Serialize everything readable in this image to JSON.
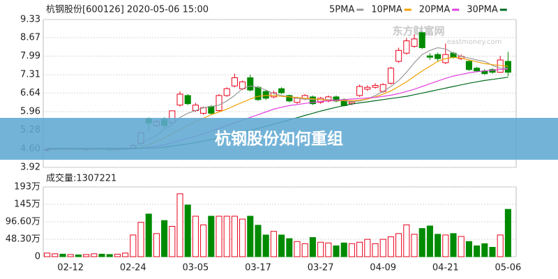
{
  "chart_data": [
    {
      "type": "candlestick",
      "title": "杭钢股份[600126] 2020-05-06 15:00",
      "ylim": [
        3.92,
        9.33
      ],
      "yticks": [
        {
          "value": 3.92,
          "label": "3.92"
        },
        {
          "value": 4.6,
          "label": "4.60"
        },
        5.28,
        5.96,
        6.64,
        7.31,
        7.99,
        8.67,
        9.33
      ],
      "grid": true,
      "up_color": "#e8001a",
      "down_color": "#008a00",
      "legend": "top-right",
      "open": [
        4.55,
        4.57,
        4.6,
        4.58,
        4.6,
        4.57,
        4.58,
        4.6,
        4.58,
        4.57,
        4.59,
        4.62,
        4.8,
        5.7,
        5.45,
        5.68,
        5.55,
        6.2,
        6.55,
        6.0,
        5.9,
        6.15,
        6.0,
        6.55,
        6.9,
        6.8,
        7.2,
        6.85,
        6.7,
        6.5,
        6.8,
        6.55,
        6.3,
        6.42,
        6.5,
        6.3,
        6.35,
        6.5,
        6.4,
        6.25,
        6.55,
        6.78,
        6.85,
        6.7,
        7.0,
        7.8,
        8.1,
        8.35,
        8.85,
        8.0,
        8.05,
        7.75,
        8.1,
        7.9,
        7.8,
        7.55,
        7.45,
        7.5,
        7.4,
        7.8
      ],
      "close": [
        4.57,
        4.6,
        4.58,
        4.6,
        4.57,
        4.58,
        4.6,
        4.58,
        4.57,
        4.59,
        4.62,
        4.72,
        5.19,
        5.55,
        5.6,
        5.45,
        5.99,
        6.6,
        6.25,
        6.2,
        6.1,
        5.9,
        6.55,
        6.8,
        7.2,
        7.05,
        6.75,
        6.4,
        6.45,
        6.65,
        6.65,
        6.35,
        6.45,
        6.55,
        6.25,
        6.45,
        6.5,
        6.35,
        6.18,
        6.3,
        6.88,
        6.85,
        6.92,
        6.95,
        7.55,
        8.2,
        8.55,
        8.62,
        8.3,
        7.95,
        7.9,
        8.05,
        7.95,
        7.98,
        7.5,
        7.45,
        7.35,
        7.4,
        7.85,
        7.4
      ],
      "high": [
        4.62,
        4.63,
        4.64,
        4.63,
        4.62,
        4.61,
        4.63,
        4.62,
        4.61,
        4.62,
        4.66,
        4.8,
        5.19,
        5.75,
        5.65,
        5.75,
        5.99,
        6.7,
        6.6,
        6.28,
        6.15,
        6.2,
        6.6,
        6.85,
        7.35,
        7.1,
        7.32,
        6.9,
        6.75,
        6.72,
        6.85,
        6.58,
        6.5,
        6.6,
        6.55,
        6.5,
        6.55,
        6.55,
        6.45,
        6.35,
        6.95,
        6.92,
        7.0,
        7.0,
        7.6,
        8.3,
        8.65,
        8.78,
        8.9,
        8.1,
        8.12,
        8.45,
        8.15,
        8.05,
        7.85,
        7.6,
        7.52,
        7.55,
        8.0,
        8.15
      ],
      "low": [
        4.5,
        4.52,
        4.55,
        4.55,
        4.54,
        4.54,
        4.55,
        4.55,
        4.54,
        4.55,
        4.56,
        4.58,
        4.72,
        5.25,
        5.4,
        5.35,
        5.5,
        6.15,
        6.2,
        5.95,
        5.85,
        5.85,
        5.95,
        6.5,
        6.85,
        6.75,
        6.7,
        6.35,
        6.38,
        6.45,
        6.6,
        6.3,
        6.25,
        6.38,
        6.2,
        6.25,
        6.3,
        6.3,
        6.15,
        6.2,
        6.5,
        6.72,
        6.8,
        6.65,
        6.95,
        7.75,
        8.05,
        8.3,
        8.25,
        7.85,
        7.8,
        7.7,
        7.9,
        7.85,
        7.45,
        7.4,
        7.3,
        7.35,
        7.38,
        7.25
      ],
      "series": [
        {
          "name": "5PMA",
          "color": "#9a9a9a",
          "values": [
            4.58,
            4.58,
            4.58,
            4.58,
            4.58,
            4.58,
            4.58,
            4.58,
            4.58,
            4.58,
            4.58,
            4.64,
            4.8,
            4.95,
            5.1,
            5.3,
            5.5,
            5.75,
            5.9,
            6.0,
            6.1,
            6.15,
            6.2,
            6.35,
            6.55,
            6.8,
            6.9,
            6.85,
            6.75,
            6.62,
            6.55,
            6.5,
            6.45,
            6.42,
            6.4,
            6.4,
            6.4,
            6.38,
            6.36,
            6.32,
            6.35,
            6.42,
            6.55,
            6.7,
            6.88,
            7.1,
            7.4,
            7.75,
            8.05,
            8.2,
            8.3,
            8.25,
            8.1,
            7.98,
            7.92,
            7.85,
            7.8,
            7.65,
            7.55,
            7.55
          ]
        },
        {
          "name": "10PMA",
          "color": "#f0a000",
          "values": [
            4.58,
            4.58,
            4.58,
            4.58,
            4.58,
            4.58,
            4.58,
            4.58,
            4.58,
            4.58,
            4.59,
            4.6,
            4.65,
            4.75,
            4.87,
            5.0,
            5.15,
            5.3,
            5.45,
            5.6,
            5.72,
            5.85,
            5.95,
            6.05,
            6.18,
            6.3,
            6.42,
            6.52,
            6.55,
            6.55,
            6.52,
            6.5,
            6.48,
            6.45,
            6.43,
            6.4,
            6.38,
            6.37,
            6.37,
            6.36,
            6.38,
            6.42,
            6.5,
            6.6,
            6.72,
            6.88,
            7.05,
            7.25,
            7.45,
            7.62,
            7.8,
            7.9,
            7.95,
            7.92,
            7.85,
            7.78,
            7.72,
            7.68,
            7.65,
            7.62
          ]
        },
        {
          "name": "20PMA",
          "color": "#e040e0",
          "values": [
            4.6,
            4.6,
            4.6,
            4.6,
            4.6,
            4.6,
            4.6,
            4.6,
            4.6,
            4.6,
            4.6,
            4.6,
            4.62,
            4.66,
            4.7,
            4.75,
            4.82,
            4.9,
            4.98,
            5.06,
            5.15,
            5.25,
            5.35,
            5.45,
            5.55,
            5.65,
            5.75,
            5.85,
            5.95,
            6.05,
            6.12,
            6.18,
            6.22,
            6.26,
            6.3,
            6.33,
            6.36,
            6.38,
            6.4,
            6.42,
            6.44,
            6.46,
            6.48,
            6.52,
            6.56,
            6.62,
            6.7,
            6.78,
            6.88,
            6.98,
            7.08,
            7.18,
            7.26,
            7.32,
            7.38,
            7.42,
            7.45,
            7.48,
            7.5,
            7.52
          ]
        },
        {
          "name": "30PMA",
          "color": "#006a1e",
          "values": [
            4.62,
            4.62,
            4.62,
            4.62,
            4.62,
            4.62,
            4.62,
            4.62,
            4.62,
            4.62,
            4.62,
            4.62,
            4.62,
            4.63,
            4.64,
            4.66,
            4.7,
            4.74,
            4.78,
            4.83,
            4.88,
            4.94,
            5.0,
            5.07,
            5.14,
            5.21,
            5.28,
            5.35,
            5.42,
            5.5,
            5.58,
            5.66,
            5.74,
            5.82,
            5.9,
            5.98,
            6.05,
            6.12,
            6.18,
            6.24,
            6.28,
            6.32,
            6.36,
            6.4,
            6.44,
            6.48,
            6.52,
            6.58,
            6.64,
            6.7,
            6.76,
            6.82,
            6.88,
            6.94,
            7.0,
            7.05,
            7.1,
            7.14,
            7.18,
            7.22
          ]
        }
      ]
    },
    {
      "type": "bar",
      "title": "成交量:1307221",
      "ylim": [
        0,
        193
      ],
      "yticks": [
        0,
        {
          "value": 48.3,
          "label": "48.30万"
        },
        {
          "value": 96.6,
          "label": "96.60万"
        },
        {
          "value": 145,
          "label": "145万"
        },
        {
          "value": 193,
          "label": "193万"
        }
      ],
      "grid": true,
      "categories": [
        null,
        null,
        null,
        "02-12",
        null,
        null,
        null,
        null,
        null,
        null,
        null,
        "02-24",
        null,
        null,
        null,
        null,
        null,
        null,
        null,
        "03-05",
        null,
        null,
        null,
        null,
        null,
        null,
        null,
        "03-17",
        null,
        null,
        null,
        null,
        null,
        null,
        null,
        "03-27",
        null,
        null,
        null,
        null,
        null,
        null,
        null,
        "04-09",
        null,
        null,
        null,
        null,
        null,
        null,
        null,
        "04-21",
        null,
        null,
        null,
        null,
        null,
        null,
        null,
        "05-06"
      ],
      "values": [
        10,
        8,
        7,
        6,
        5,
        6,
        8,
        7,
        6,
        7,
        10,
        60,
        95,
        118,
        64,
        100,
        84,
        174,
        143,
        112,
        88,
        112,
        112,
        112,
        112,
        104,
        112,
        87,
        60,
        70,
        60,
        50,
        42,
        36,
        53,
        40,
        38,
        30,
        38,
        36,
        40,
        48,
        36,
        48,
        55,
        64,
        88,
        62,
        78,
        85,
        62,
        60,
        64,
        56,
        42,
        30,
        36,
        26,
        60,
        131
      ]
    }
  ],
  "watermark": {
    "name": "东方财富网",
    "url": "eastmoney.com"
  },
  "banner": {
    "title": "杭钢股份如何重组"
  }
}
